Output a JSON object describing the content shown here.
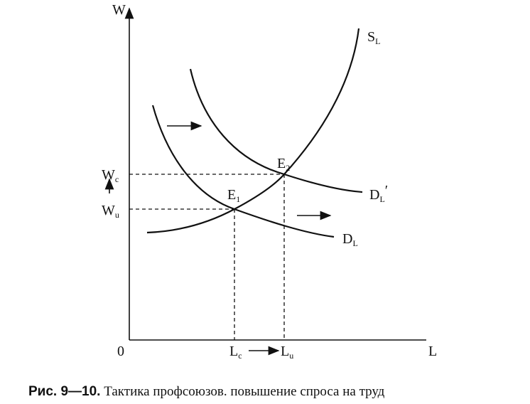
{
  "axes": {
    "y_label": "W",
    "x_label": "L",
    "origin": "0"
  },
  "curves": {
    "supply": {
      "main": "S",
      "sub": "L"
    },
    "demand": {
      "main": "D",
      "sub": "L"
    },
    "demand_new": {
      "main": "D",
      "sub": "L",
      "prime": "′"
    }
  },
  "points": {
    "e1": {
      "main": "E",
      "sub": "1"
    },
    "e2": {
      "main": "E",
      "sub": "2"
    }
  },
  "levels": {
    "wc": {
      "main": "W",
      "sub": "c"
    },
    "wu": {
      "main": "W",
      "sub": "u"
    },
    "lc": {
      "main": "L",
      "sub": "c"
    },
    "lu": {
      "main": "L",
      "sub": "u"
    }
  },
  "caption": {
    "label": "Рис. 9—10.",
    "text": "Тактика профсоюзов. повышение спроса на труд"
  }
}
